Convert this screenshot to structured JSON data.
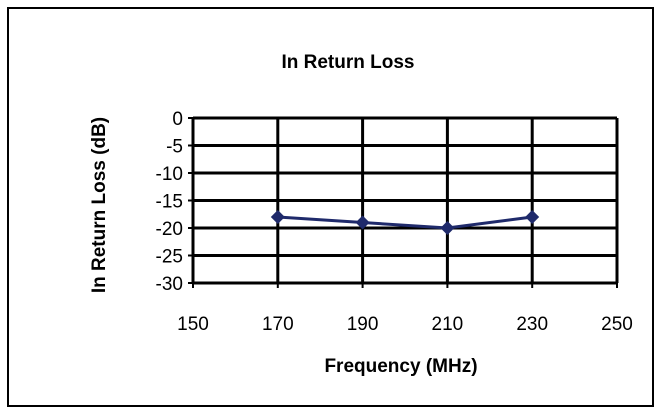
{
  "chart_data": {
    "type": "line",
    "title": "In Return Loss",
    "xlabel": "Frequency (MHz)",
    "ylabel": "In Return Loss (dB)",
    "x": [
      170,
      190,
      210,
      230
    ],
    "series": [
      {
        "values": [
          -18,
          -19,
          -20,
          -18
        ],
        "color": "#1f2a6b"
      }
    ],
    "xlim": [
      150,
      250
    ],
    "ylim": [
      -30,
      0
    ],
    "x_ticks": [
      150,
      170,
      190,
      210,
      230,
      250
    ],
    "y_ticks": [
      0,
      -5,
      -10,
      -15,
      -20,
      -25,
      -30
    ],
    "x_tick_labels": [
      "150",
      "170",
      "190",
      "210",
      "230",
      "250"
    ],
    "y_tick_labels": [
      "0",
      "-5",
      "-10",
      "-15",
      "-20",
      "-25",
      "-30"
    ],
    "grid": true,
    "legend": "none",
    "marker": "diamond"
  }
}
